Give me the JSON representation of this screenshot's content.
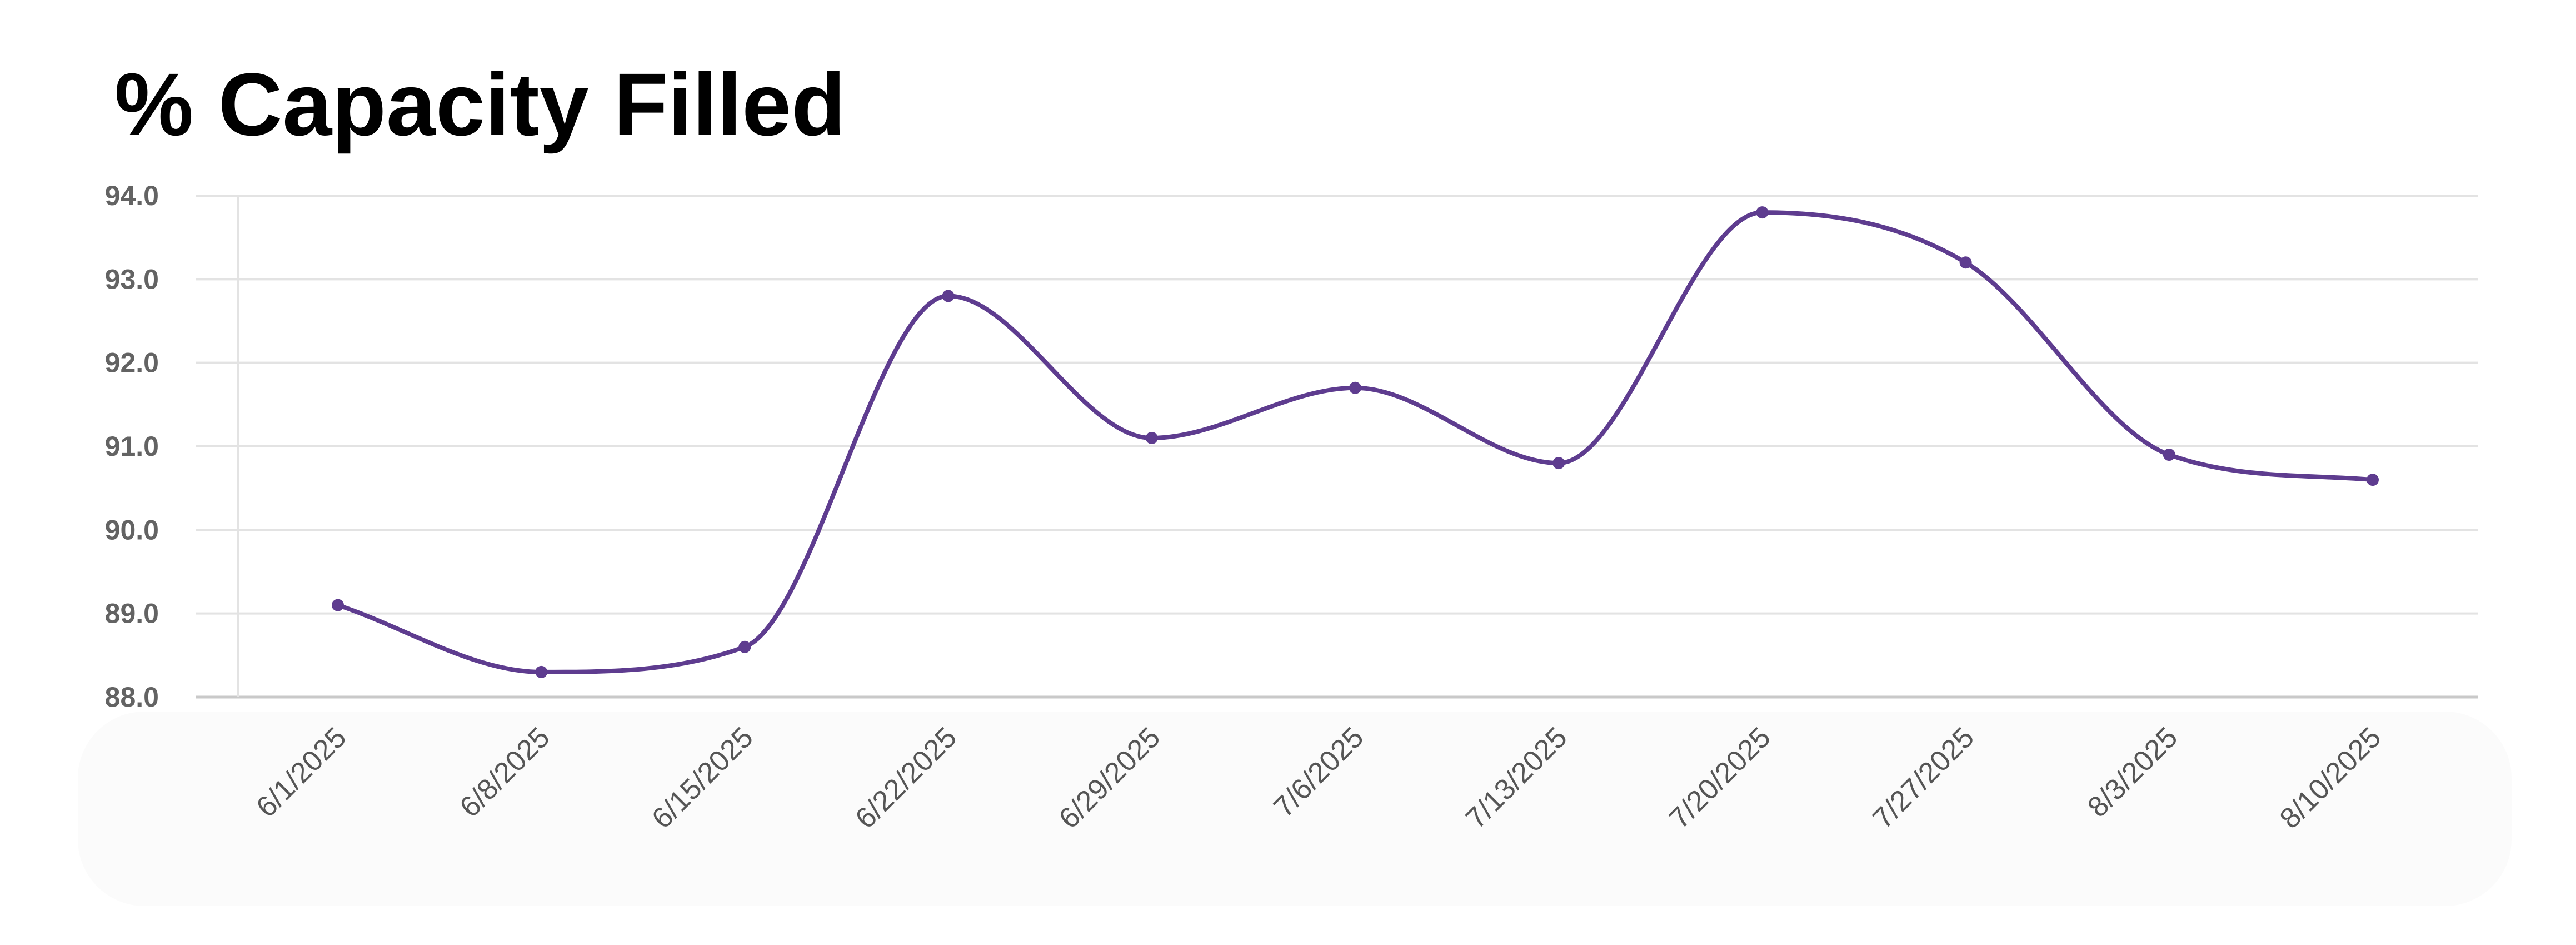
{
  "title": "% Capacity Filled",
  "colors": {
    "line": "#5e3c8f",
    "grid": "#e3e3e3",
    "axis": "#c9c9c9",
    "text": "#636363"
  },
  "chart_data": {
    "type": "line",
    "title": "% Capacity Filled",
    "xlabel": "",
    "ylabel": "",
    "categories": [
      "6/1/2025",
      "6/8/2025",
      "6/15/2025",
      "6/22/2025",
      "6/29/2025",
      "7/6/2025",
      "7/13/2025",
      "7/20/2025",
      "7/27/2025",
      "8/3/2025",
      "8/10/2025"
    ],
    "series": [
      {
        "values": [
          89.1,
          88.3,
          88.6,
          92.8,
          91.1,
          91.7,
          90.8,
          93.8,
          93.2,
          90.9,
          90.6
        ]
      }
    ],
    "ylim": [
      88.0,
      94.0
    ],
    "yticks": [
      "88.0",
      "89.0",
      "90.0",
      "91.0",
      "92.0",
      "93.0",
      "94.0"
    ],
    "grid": true,
    "smooth": true,
    "legend": "none"
  }
}
